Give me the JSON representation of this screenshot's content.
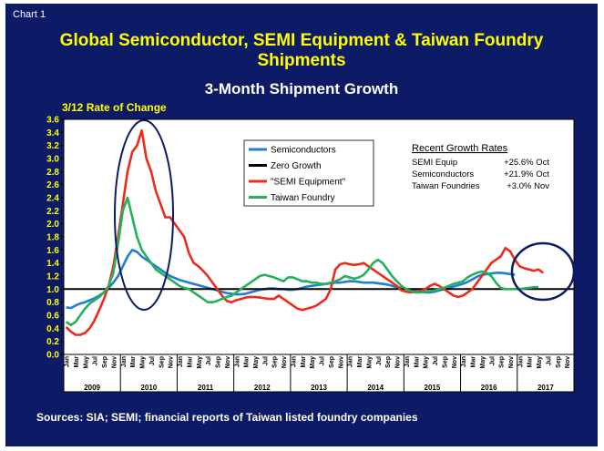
{
  "slide": {
    "chart_label": "Chart 1",
    "title_line1": "Global Semiconductor, SEMI Equipment & Taiwan Foundry",
    "title_line2": "Shipments",
    "subtitle": "3-Month Shipment Growth",
    "ylabel": "3/12 Rate of Change",
    "sources": "Sources: SIA; SEMI; financial reports of Taiwan listed foundry companies"
  },
  "colors": {
    "background": "#0d1a66",
    "title": "#ffff00",
    "plot_bg": "#ffffff",
    "semiconductors": "#1f7fd0",
    "zero_growth": "#000000",
    "semi_equipment": "#ee2a1c",
    "taiwan_foundry": "#25b05a",
    "circle": "#0d1a66"
  },
  "chart_data": {
    "type": "line",
    "title": "Global Semiconductor, SEMI Equipment & Taiwan Foundry Shipments",
    "subtitle": "3-Month Shipment Growth",
    "ylabel": "3/12 Rate of Change",
    "ylim": [
      0.0,
      3.6
    ],
    "yticks": [
      "0.0",
      "0.2",
      "0.4",
      "0.6",
      "0.8",
      "1.0",
      "1.2",
      "1.4",
      "1.6",
      "1.8",
      "2.0",
      "2.2",
      "2.4",
      "2.6",
      "2.8",
      "3.0",
      "3.2",
      "3.4",
      "3.6"
    ],
    "month_labels": [
      "Jan",
      "Mar",
      "May",
      "Jul",
      "Sep",
      "Nov"
    ],
    "years": [
      "2009",
      "2010",
      "2011",
      "2012",
      "2013",
      "2014",
      "2015",
      "2016",
      "2017"
    ],
    "grid": false,
    "legend": {
      "position": "top-center",
      "entries": [
        "Semiconductors",
        "Zero Growth",
        "\"SEMI Equipment\"",
        "Taiwan Foundry"
      ]
    },
    "annotation": {
      "heading": "Recent Growth Rates",
      "rows": [
        {
          "label": "SEMI Equip",
          "value": "+25.6% Oct"
        },
        {
          "label": "Semiconductors",
          "value": "+21.9% Oct"
        },
        {
          "label": "Taiwan Foundries",
          "value": "+3.0% Nov"
        }
      ]
    },
    "series": [
      {
        "name": "Semiconductors",
        "values": [
          0.72,
          0.71,
          0.75,
          0.78,
          0.8,
          0.83,
          0.86,
          0.9,
          0.95,
          1.02,
          1.1,
          1.2,
          1.35,
          1.5,
          1.6,
          1.57,
          1.5,
          1.45,
          1.4,
          1.35,
          1.3,
          1.25,
          1.2,
          1.17,
          1.14,
          1.12,
          1.1,
          1.08,
          1.06,
          1.04,
          1.02,
          1.0,
          0.98,
          0.96,
          0.94,
          0.93,
          0.92,
          0.92,
          0.93,
          0.95,
          0.97,
          0.99,
          1.0,
          1.01,
          1.01,
          1.0,
          1.0,
          0.99,
          0.99,
          1.0,
          1.02,
          1.04,
          1.05,
          1.06,
          1.07,
          1.08,
          1.09,
          1.1,
          1.1,
          1.11,
          1.12,
          1.12,
          1.11,
          1.1,
          1.1,
          1.1,
          1.09,
          1.08,
          1.07,
          1.05,
          1.03,
          1.02,
          1.0,
          0.98,
          0.97,
          0.96,
          0.95,
          0.95,
          0.96,
          0.98,
          1.0,
          1.02,
          1.04,
          1.06,
          1.08,
          1.11,
          1.15,
          1.19,
          1.22,
          1.23,
          1.24,
          1.25,
          1.25,
          1.24,
          1.23,
          1.22
        ]
      },
      {
        "name": "Zero Growth",
        "values": [
          1.0,
          1.0
        ]
      },
      {
        "name": "\"SEMI Equipment\"",
        "values": [
          0.42,
          0.35,
          0.3,
          0.3,
          0.33,
          0.4,
          0.52,
          0.68,
          0.85,
          1.05,
          1.35,
          1.8,
          2.3,
          2.8,
          3.1,
          3.2,
          3.43,
          3.0,
          2.8,
          2.5,
          2.3,
          2.1,
          2.1,
          2.0,
          1.9,
          1.8,
          1.55,
          1.4,
          1.35,
          1.28,
          1.2,
          1.1,
          1.0,
          0.9,
          0.82,
          0.8,
          0.83,
          0.85,
          0.87,
          0.88,
          0.88,
          0.87,
          0.86,
          0.85,
          0.85,
          0.9,
          0.85,
          0.8,
          0.75,
          0.7,
          0.68,
          0.7,
          0.72,
          0.75,
          0.8,
          0.85,
          1.0,
          1.3,
          1.38,
          1.4,
          1.38,
          1.37,
          1.38,
          1.4,
          1.35,
          1.3,
          1.25,
          1.2,
          1.15,
          1.1,
          1.05,
          0.98,
          0.96,
          0.95,
          0.96,
          0.97,
          1.0,
          1.05,
          1.08,
          1.05,
          1.0,
          0.95,
          0.9,
          0.88,
          0.9,
          0.95,
          1.0,
          1.1,
          1.2,
          1.3,
          1.4,
          1.45,
          1.5,
          1.63,
          1.58,
          1.45,
          1.35,
          1.32,
          1.3,
          1.28,
          1.3,
          1.25
        ]
      },
      {
        "name": "Taiwan Foundry",
        "values": [
          0.5,
          0.45,
          0.5,
          0.6,
          0.7,
          0.78,
          0.83,
          0.88,
          0.95,
          1.05,
          1.25,
          1.7,
          2.2,
          2.4,
          2.1,
          1.8,
          1.6,
          1.5,
          1.4,
          1.3,
          1.25,
          1.2,
          1.15,
          1.1,
          1.05,
          1.02,
          1.0,
          0.95,
          0.9,
          0.85,
          0.8,
          0.8,
          0.82,
          0.85,
          0.88,
          0.9,
          0.95,
          1.0,
          1.05,
          1.1,
          1.15,
          1.2,
          1.22,
          1.2,
          1.18,
          1.15,
          1.12,
          1.18,
          1.18,
          1.15,
          1.12,
          1.12,
          1.1,
          1.1,
          1.08,
          1.08,
          1.1,
          1.12,
          1.15,
          1.2,
          1.18,
          1.16,
          1.18,
          1.22,
          1.3,
          1.4,
          1.45,
          1.4,
          1.3,
          1.2,
          1.12,
          1.05,
          1.0,
          0.97,
          0.95,
          0.95,
          0.96,
          0.97,
          0.98,
          1.0,
          1.02,
          1.05,
          1.08,
          1.1,
          1.12,
          1.18,
          1.22,
          1.25,
          1.27,
          1.25,
          1.2,
          1.1,
          1.02,
          1.0,
          1.0,
          1.0,
          1.0,
          1.01,
          1.02,
          1.03,
          1.03
        ]
      }
    ]
  }
}
